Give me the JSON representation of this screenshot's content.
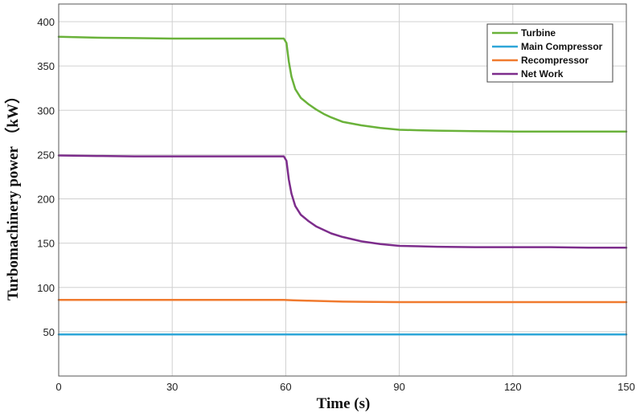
{
  "chart_data": {
    "type": "line",
    "title": "",
    "xlabel": "Time (s)",
    "ylabel": "Turbomachinery power （kW）",
    "xlim": [
      0,
      150
    ],
    "ylim": [
      0,
      420
    ],
    "xticks": [
      0,
      30,
      60,
      90,
      120,
      150
    ],
    "yticks": [
      50,
      100,
      150,
      200,
      250,
      300,
      350,
      400
    ],
    "grid": true,
    "legend_position": "top-right",
    "series": [
      {
        "name": "Turbine",
        "color": "#6ab23a",
        "x": [
          0,
          10,
          20,
          30,
          40,
          50,
          59.5,
          60.2,
          60.8,
          61.5,
          62.5,
          64,
          66,
          68,
          70,
          72,
          75,
          80,
          85,
          90,
          95,
          100,
          110,
          120,
          130,
          140,
          150
        ],
        "y": [
          383,
          382,
          381.5,
          381,
          381,
          381,
          381,
          376,
          355,
          338,
          324,
          314,
          307,
          301,
          296,
          292,
          287,
          283,
          280,
          278,
          277.5,
          277,
          276.5,
          276,
          276,
          276,
          276
        ]
      },
      {
        "name": "Main Compressor",
        "color": "#2ea6d8",
        "x": [
          0,
          30,
          60,
          90,
          120,
          150
        ],
        "y": [
          47,
          47,
          47,
          47,
          47,
          47
        ]
      },
      {
        "name": "Recompressor",
        "color": "#f07a2e",
        "x": [
          0,
          30,
          59.5,
          62,
          66,
          70,
          75,
          80,
          90,
          100,
          120,
          150
        ],
        "y": [
          86,
          86,
          86,
          85.5,
          85,
          84.5,
          84,
          83.8,
          83.5,
          83.5,
          83.5,
          83.5
        ]
      },
      {
        "name": "Net Work",
        "color": "#7d2d8c",
        "x": [
          0,
          10,
          20,
          30,
          40,
          50,
          59.5,
          60.2,
          60.8,
          61.5,
          62.5,
          64,
          66,
          68,
          70,
          72,
          75,
          80,
          85,
          90,
          95,
          100,
          110,
          120,
          130,
          140,
          150
        ],
        "y": [
          249,
          248.5,
          248,
          248,
          248,
          248,
          248,
          243,
          222,
          206,
          192,
          182,
          175,
          169,
          165,
          161,
          157,
          152,
          149,
          147,
          146.5,
          146,
          145.5,
          145.5,
          145.5,
          145,
          145
        ]
      }
    ]
  }
}
